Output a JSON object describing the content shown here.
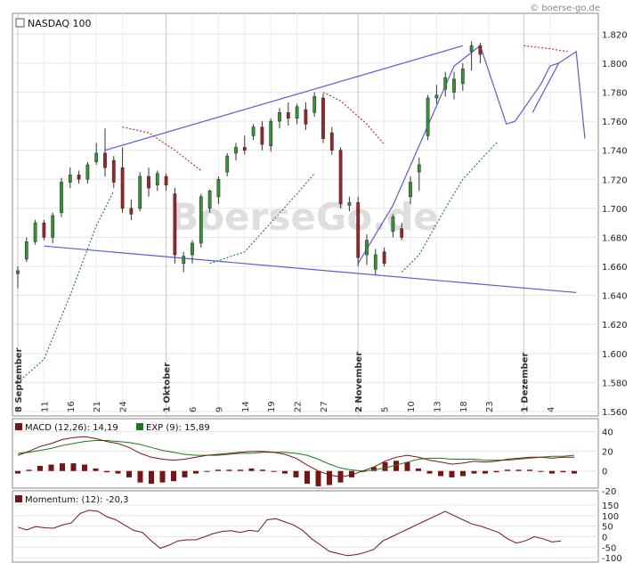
{
  "watermark_top": "© boerse-go.de",
  "watermark_center": "BoerseGo.de",
  "chart_data": [
    {
      "type": "candlestick",
      "title": "NASDAQ 100",
      "ylim": [
        1560,
        1830
      ],
      "y_ticks": [
        1560,
        1580,
        1600,
        1620,
        1640,
        1660,
        1680,
        1700,
        1720,
        1740,
        1760,
        1780,
        1800,
        1820
      ],
      "y_tick_labels": [
        "1.560",
        "1.580",
        "1.600",
        "1.620",
        "1.640",
        "1.660",
        "1.680",
        "1.700",
        "1.720",
        "1.740",
        "1.760",
        "1.780",
        "1.800",
        "1.820"
      ],
      "x_labels": [
        {
          "i": 0,
          "text": "8 September",
          "major": true
        },
        {
          "i": 3,
          "text": "11"
        },
        {
          "i": 6,
          "text": "16"
        },
        {
          "i": 9,
          "text": "21"
        },
        {
          "i": 12,
          "text": "24"
        },
        {
          "i": 17,
          "text": "1 Oktober",
          "major": true
        },
        {
          "i": 20,
          "text": "6"
        },
        {
          "i": 23,
          "text": "9"
        },
        {
          "i": 26,
          "text": "14"
        },
        {
          "i": 29,
          "text": "19"
        },
        {
          "i": 32,
          "text": "22"
        },
        {
          "i": 35,
          "text": "27"
        },
        {
          "i": 39,
          "text": "2 November",
          "major": true
        },
        {
          "i": 42,
          "text": "5"
        },
        {
          "i": 45,
          "text": "10"
        },
        {
          "i": 48,
          "text": "13"
        },
        {
          "i": 51,
          "text": "18"
        },
        {
          "i": 54,
          "text": "23"
        },
        {
          "i": 58,
          "text": "1 Dezember",
          "major": true
        },
        {
          "i": 61,
          "text": "4"
        }
      ],
      "candles": [
        [
          1655,
          1657,
          1645,
          1660
        ],
        [
          1665,
          1677,
          1663,
          1680
        ],
        [
          1677,
          1690,
          1675,
          1692
        ],
        [
          1690,
          1680,
          1678,
          1692
        ],
        [
          1680,
          1695,
          1676,
          1697
        ],
        [
          1697,
          1718,
          1694,
          1721
        ],
        [
          1718,
          1723,
          1714,
          1728
        ],
        [
          1723,
          1720,
          1717,
          1726
        ],
        [
          1720,
          1730,
          1717,
          1732
        ],
        [
          1732,
          1738,
          1730,
          1745
        ],
        [
          1738,
          1728,
          1722,
          1755
        ],
        [
          1733,
          1718,
          1714,
          1736
        ],
        [
          1728,
          1700,
          1697,
          1742
        ],
        [
          1700,
          1696,
          1692,
          1706
        ],
        [
          1700,
          1722,
          1698,
          1725
        ],
        [
          1722,
          1714,
          1708,
          1728
        ],
        [
          1716,
          1724,
          1712,
          1726
        ],
        [
          1722,
          1716,
          1712,
          1724
        ],
        [
          1710,
          1668,
          1662,
          1714
        ],
        [
          1662,
          1667,
          1656,
          1670
        ],
        [
          1668,
          1676,
          1662,
          1678
        ],
        [
          1676,
          1708,
          1673,
          1710
        ],
        [
          1700,
          1712,
          1697,
          1713
        ],
        [
          1708,
          1720,
          1703,
          1722
        ],
        [
          1725,
          1736,
          1722,
          1738
        ],
        [
          1738,
          1742,
          1733,
          1745
        ],
        [
          1742,
          1740,
          1737,
          1750
        ],
        [
          1750,
          1756,
          1747,
          1758
        ],
        [
          1756,
          1744,
          1740,
          1760
        ],
        [
          1743,
          1760,
          1739,
          1762
        ],
        [
          1760,
          1766,
          1755,
          1769
        ],
        [
          1766,
          1762,
          1757,
          1773
        ],
        [
          1762,
          1770,
          1758,
          1772
        ],
        [
          1768,
          1758,
          1754,
          1773
        ],
        [
          1766,
          1777,
          1763,
          1780
        ],
        [
          1776,
          1748,
          1745,
          1779
        ],
        [
          1752,
          1740,
          1737,
          1756
        ],
        [
          1740,
          1703,
          1700,
          1742
        ],
        [
          1702,
          1704,
          1698,
          1708
        ],
        [
          1704,
          1666,
          1660,
          1708
        ],
        [
          1668,
          1678,
          1661,
          1682
        ],
        [
          1658,
          1668,
          1654,
          1672
        ],
        [
          1670,
          1662,
          1660,
          1673
        ],
        [
          1684,
          1694,
          1680,
          1696
        ],
        [
          1686,
          1680,
          1678,
          1690
        ],
        [
          1708,
          1718,
          1703,
          1722
        ],
        [
          1725,
          1730,
          1712,
          1735
        ],
        [
          1750,
          1776,
          1747,
          1778
        ],
        [
          1776,
          1778,
          1772,
          1785
        ],
        [
          1782,
          1790,
          1777,
          1794
        ],
        [
          1780,
          1789,
          1775,
          1794
        ],
        [
          1786,
          1796,
          1781,
          1800
        ],
        [
          1808,
          1812,
          1795,
          1815
        ],
        [
          1812,
          1806,
          1800,
          1814
        ]
      ]
    },
    {
      "type": "line",
      "title": "MACD",
      "legend": [
        {
          "name": "MACD (12,26): 14,19",
          "color": "#7a1414"
        },
        {
          "name": "EXP (9): 15,89",
          "color": "#1e7a1e"
        }
      ],
      "ylim": [
        -22,
        46
      ],
      "y_ticks": [
        40,
        20,
        0,
        -20
      ],
      "y_tick_labels": [
        "40",
        "20",
        "0",
        "-20"
      ]
    },
    {
      "type": "line",
      "title": "Momentum",
      "legend": [
        {
          "name": "Momentum: (12): -20,3",
          "color": "#7a1414"
        }
      ],
      "ylim": [
        -112,
        175
      ],
      "y_ticks": [
        150,
        100,
        50,
        0,
        -50,
        -100
      ],
      "y_tick_labels": [
        "150",
        "100",
        "50",
        "0",
        "-50",
        "-100"
      ]
    }
  ]
}
